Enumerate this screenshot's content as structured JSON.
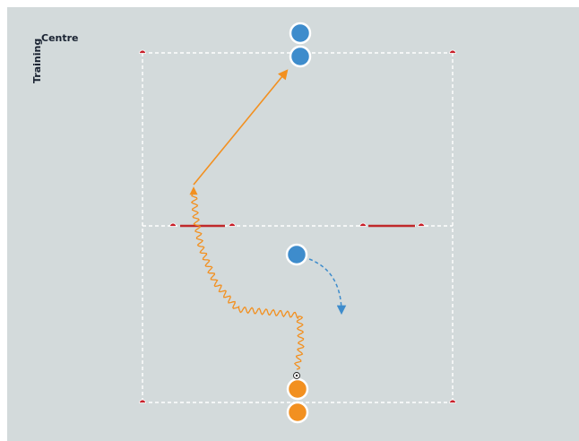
{
  "logo": {
    "word1": "Training",
    "word2": "Centre"
  },
  "colors": {
    "background": "#d3dadb",
    "lines": "#ffffff",
    "cones": "#c8202a",
    "gate": "#c0282a",
    "team_blue": "#3e8ccc",
    "team_orange": "#f29020",
    "dribble": "#f29020",
    "pass": "#f29020",
    "run": "#3e8ccc"
  },
  "players": [
    {
      "team": "blue",
      "role": "queue-1"
    },
    {
      "team": "blue",
      "role": "queue-2"
    },
    {
      "team": "blue",
      "role": "defender"
    },
    {
      "team": "orange",
      "role": "attacker-with-ball"
    },
    {
      "team": "orange",
      "role": "queue"
    }
  ],
  "icons": [
    "ball-icon",
    "cone-icon"
  ]
}
